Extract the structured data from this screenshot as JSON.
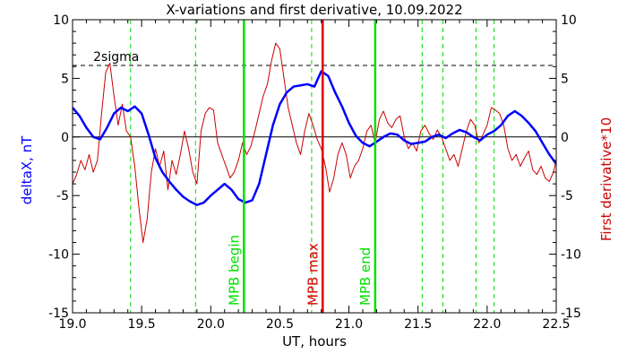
{
  "chart_data": {
    "type": "line",
    "title": "X-variations and first derivative, 10.09.2022",
    "xlabel": "UT, hours",
    "ylabel_left": "deltaX, nT",
    "ylabel_right": "First derivative*10",
    "xlim": [
      19.0,
      22.5
    ],
    "ylim_left": [
      -15,
      10
    ],
    "ylim_right": [
      -15,
      10
    ],
    "x_ticks": [
      "19.0",
      "19.5",
      "20.0",
      "20.5",
      "21.0",
      "21.5",
      "22.0",
      "22.5"
    ],
    "x_tick_values": [
      19.0,
      19.5,
      20.0,
      20.5,
      21.0,
      21.5,
      22.0,
      22.5
    ],
    "y_ticks": [
      "10",
      "5",
      "0",
      "-5",
      "-10",
      "-15"
    ],
    "y_tick_values": [
      10,
      5,
      0,
      -5,
      -10,
      -15
    ],
    "grid": false,
    "colors": {
      "deltaX": "#0000ff",
      "derivative": "#cc0000",
      "mpb_lines": "#00e000",
      "mpb_max": "#dd0000",
      "threshold": "#000000",
      "axis_text": "#000000"
    },
    "threshold": {
      "label": "2sigma",
      "value": 6.1
    },
    "zero_line": 0,
    "markers": [
      {
        "label": "MPB begin",
        "x": 20.24,
        "color": "#00e000"
      },
      {
        "label": "MPB max",
        "x": 20.81,
        "color": "#dd0000"
      },
      {
        "label": "MPB end",
        "x": 21.19,
        "color": "#00e000"
      }
    ],
    "dashed_verticals": [
      19.42,
      19.89,
      20.73,
      21.53,
      21.68,
      21.92,
      22.05
    ],
    "series": [
      {
        "label": "deltaX, nT",
        "axis": "left",
        "x": [
          19.0,
          19.05,
          19.1,
          19.15,
          19.2,
          19.25,
          19.3,
          19.35,
          19.4,
          19.45,
          19.5,
          19.55,
          19.6,
          19.65,
          19.7,
          19.75,
          19.8,
          19.85,
          19.9,
          19.95,
          20.0,
          20.05,
          20.1,
          20.15,
          20.2,
          20.25,
          20.3,
          20.35,
          20.4,
          20.45,
          20.5,
          20.55,
          20.6,
          20.65,
          20.7,
          20.75,
          20.8,
          20.85,
          20.9,
          20.95,
          21.0,
          21.05,
          21.1,
          21.15,
          21.2,
          21.25,
          21.3,
          21.35,
          21.4,
          21.45,
          21.5,
          21.55,
          21.6,
          21.65,
          21.7,
          21.75,
          21.8,
          21.85,
          21.9,
          21.95,
          22.0,
          22.05,
          22.1,
          22.15,
          22.2,
          22.25,
          22.3,
          22.35,
          22.4,
          22.45,
          22.5
        ],
        "y": [
          2.5,
          1.8,
          0.8,
          0.0,
          -0.2,
          0.8,
          2.0,
          2.5,
          2.2,
          2.6,
          2.0,
          0.2,
          -1.8,
          -3.0,
          -3.8,
          -4.5,
          -5.1,
          -5.5,
          -5.8,
          -5.6,
          -5.0,
          -4.5,
          -4.0,
          -4.5,
          -5.3,
          -5.6,
          -5.4,
          -4.0,
          -1.5,
          1.0,
          2.8,
          3.8,
          4.3,
          4.4,
          4.5,
          4.3,
          5.6,
          5.2,
          3.8,
          2.6,
          1.2,
          0.1,
          -0.5,
          -0.8,
          -0.4,
          0.0,
          0.3,
          0.2,
          -0.3,
          -0.6,
          -0.5,
          -0.4,
          0.0,
          0.2,
          -0.1,
          0.3,
          0.6,
          0.4,
          0.0,
          -0.3,
          0.2,
          0.5,
          1.0,
          1.8,
          2.2,
          1.8,
          1.2,
          0.5,
          -0.5,
          -1.5,
          -2.3
        ]
      },
      {
        "label": "First derivative*10",
        "axis": "right",
        "x": [
          19.0,
          19.03,
          19.06,
          19.09,
          19.12,
          19.15,
          19.18,
          19.21,
          19.24,
          19.27,
          19.3,
          19.33,
          19.36,
          19.39,
          19.42,
          19.45,
          19.48,
          19.51,
          19.54,
          19.57,
          19.6,
          19.63,
          19.66,
          19.69,
          19.72,
          19.75,
          19.78,
          19.81,
          19.84,
          19.87,
          19.9,
          19.93,
          19.96,
          19.99,
          20.02,
          20.05,
          20.08,
          20.11,
          20.14,
          20.17,
          20.2,
          20.23,
          20.26,
          20.29,
          20.32,
          20.35,
          20.38,
          20.41,
          20.44,
          20.47,
          20.5,
          20.53,
          20.56,
          20.59,
          20.62,
          20.65,
          20.68,
          20.71,
          20.74,
          20.77,
          20.8,
          20.83,
          20.86,
          20.89,
          20.92,
          20.95,
          20.98,
          21.01,
          21.04,
          21.07,
          21.1,
          21.13,
          21.16,
          21.19,
          21.22,
          21.25,
          21.28,
          21.31,
          21.34,
          21.37,
          21.4,
          21.43,
          21.46,
          21.49,
          21.52,
          21.55,
          21.58,
          21.61,
          21.64,
          21.67,
          21.7,
          21.73,
          21.76,
          21.79,
          21.82,
          21.85,
          21.88,
          21.91,
          21.94,
          21.97,
          22.0,
          22.03,
          22.06,
          22.09,
          22.12,
          22.15,
          22.18,
          22.21,
          22.24,
          22.27,
          22.3,
          22.33,
          22.36,
          22.39,
          22.42,
          22.45,
          22.48,
          22.5
        ],
        "y": [
          -4.0,
          -3.2,
          -2.0,
          -2.8,
          -1.5,
          -3.0,
          -2.0,
          2.0,
          5.5,
          6.3,
          3.5,
          1.0,
          2.8,
          0.5,
          0.0,
          -2.5,
          -6.0,
          -9.0,
          -7.0,
          -3.0,
          -1.0,
          -2.5,
          -1.2,
          -4.5,
          -2.0,
          -3.2,
          -1.5,
          0.5,
          -1.0,
          -3.0,
          -4.0,
          0.5,
          2.0,
          2.5,
          2.3,
          -0.5,
          -1.5,
          -2.5,
          -3.5,
          -3.0,
          -2.0,
          -0.5,
          -1.5,
          -0.8,
          0.5,
          2.0,
          3.5,
          4.5,
          6.5,
          8.0,
          7.5,
          5.0,
          2.5,
          1.0,
          -0.5,
          -1.5,
          0.5,
          2.0,
          1.0,
          -0.2,
          -1.0,
          -2.5,
          -4.7,
          -3.5,
          -1.5,
          -0.5,
          -1.5,
          -3.5,
          -2.5,
          -2.0,
          -1.0,
          0.5,
          1.0,
          -0.5,
          1.5,
          2.2,
          1.2,
          0.8,
          1.5,
          1.8,
          0.0,
          -1.0,
          -0.5,
          -1.2,
          0.5,
          1.0,
          0.3,
          -0.2,
          0.6,
          0.0,
          -1.0,
          -2.0,
          -1.5,
          -2.5,
          -1.0,
          0.5,
          1.5,
          1.0,
          -0.5,
          0.2,
          1.0,
          2.5,
          2.3,
          2.0,
          1.0,
          -1.0,
          -2.0,
          -1.5,
          -2.5,
          -1.8,
          -1.2,
          -2.8,
          -3.2,
          -2.5,
          -3.5,
          -3.8,
          -3.0,
          -2.0
        ]
      }
    ]
  }
}
